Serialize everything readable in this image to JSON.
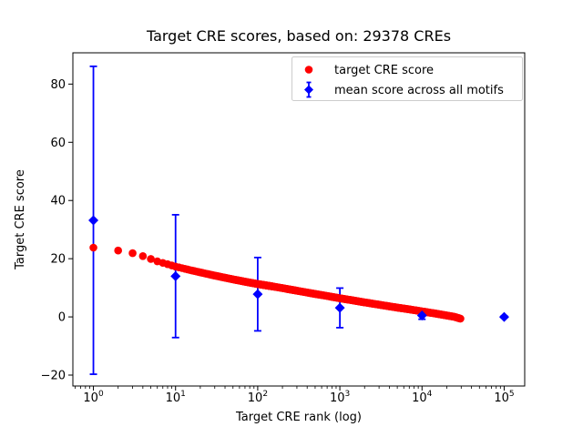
{
  "chart_data": {
    "type": "scatter",
    "title": "Target CRE scores, based on: 29378 CREs",
    "xlabel": "Target CRE rank (log)",
    "ylabel": "Target CRE score",
    "x_scale": "log",
    "x_tick_exponents": [
      0,
      1,
      2,
      3,
      4,
      5
    ],
    "x_tick_base": "10",
    "x_log_range": [
      -0.25,
      5.25
    ],
    "y_ticks": [
      -20,
      0,
      20,
      40,
      60,
      80
    ],
    "y_range": [
      -23.75,
      90.75
    ],
    "grid": false,
    "n_cres": 29378,
    "colors": {
      "target_series": "#ff0000",
      "mean_series": "#0000ff",
      "axis": "#000000",
      "legend_border": "#cccccc",
      "background": "#ffffff"
    },
    "legend": {
      "position": "upper right"
    },
    "series": [
      {
        "name": "target CRE score",
        "marker": "circle",
        "color": "#ff0000",
        "n_points": 29378,
        "curve_points": [
          [
            1,
            23.8
          ],
          [
            2,
            22.8
          ],
          [
            3,
            21.9
          ],
          [
            4,
            20.9
          ],
          [
            5,
            19.9
          ],
          [
            6,
            19.1
          ],
          [
            8,
            18.1
          ],
          [
            10,
            17.3
          ],
          [
            15,
            16.1
          ],
          [
            20,
            15.3
          ],
          [
            30,
            14.2
          ],
          [
            50,
            12.9
          ],
          [
            70,
            12.1
          ],
          [
            100,
            11.3
          ],
          [
            150,
            10.5
          ],
          [
            200,
            9.9
          ],
          [
            300,
            9.0
          ],
          [
            500,
            7.9
          ],
          [
            700,
            7.2
          ],
          [
            1000,
            6.4
          ],
          [
            1500,
            5.6
          ],
          [
            2000,
            5.0
          ],
          [
            3000,
            4.2
          ],
          [
            5000,
            3.2
          ],
          [
            7000,
            2.6
          ],
          [
            10000,
            1.9
          ],
          [
            15000,
            1.1
          ],
          [
            20000,
            0.5
          ],
          [
            25000,
            0.0
          ],
          [
            29378,
            -0.6
          ]
        ]
      },
      {
        "name": "mean score across all motifs",
        "marker": "diamond",
        "color": "#0000ff",
        "points": [
          {
            "x": 1,
            "mean": 33.2,
            "err": 52.9
          },
          {
            "x": 10,
            "mean": 14.0,
            "err": 21.1
          },
          {
            "x": 100,
            "mean": 7.8,
            "err": 12.6
          },
          {
            "x": 1000,
            "mean": 3.1,
            "err": 6.8
          },
          {
            "x": 10000,
            "mean": 0.5,
            "err": 1.3
          },
          {
            "x": 100000,
            "mean": 0.0,
            "err": 0.3
          }
        ]
      }
    ]
  }
}
